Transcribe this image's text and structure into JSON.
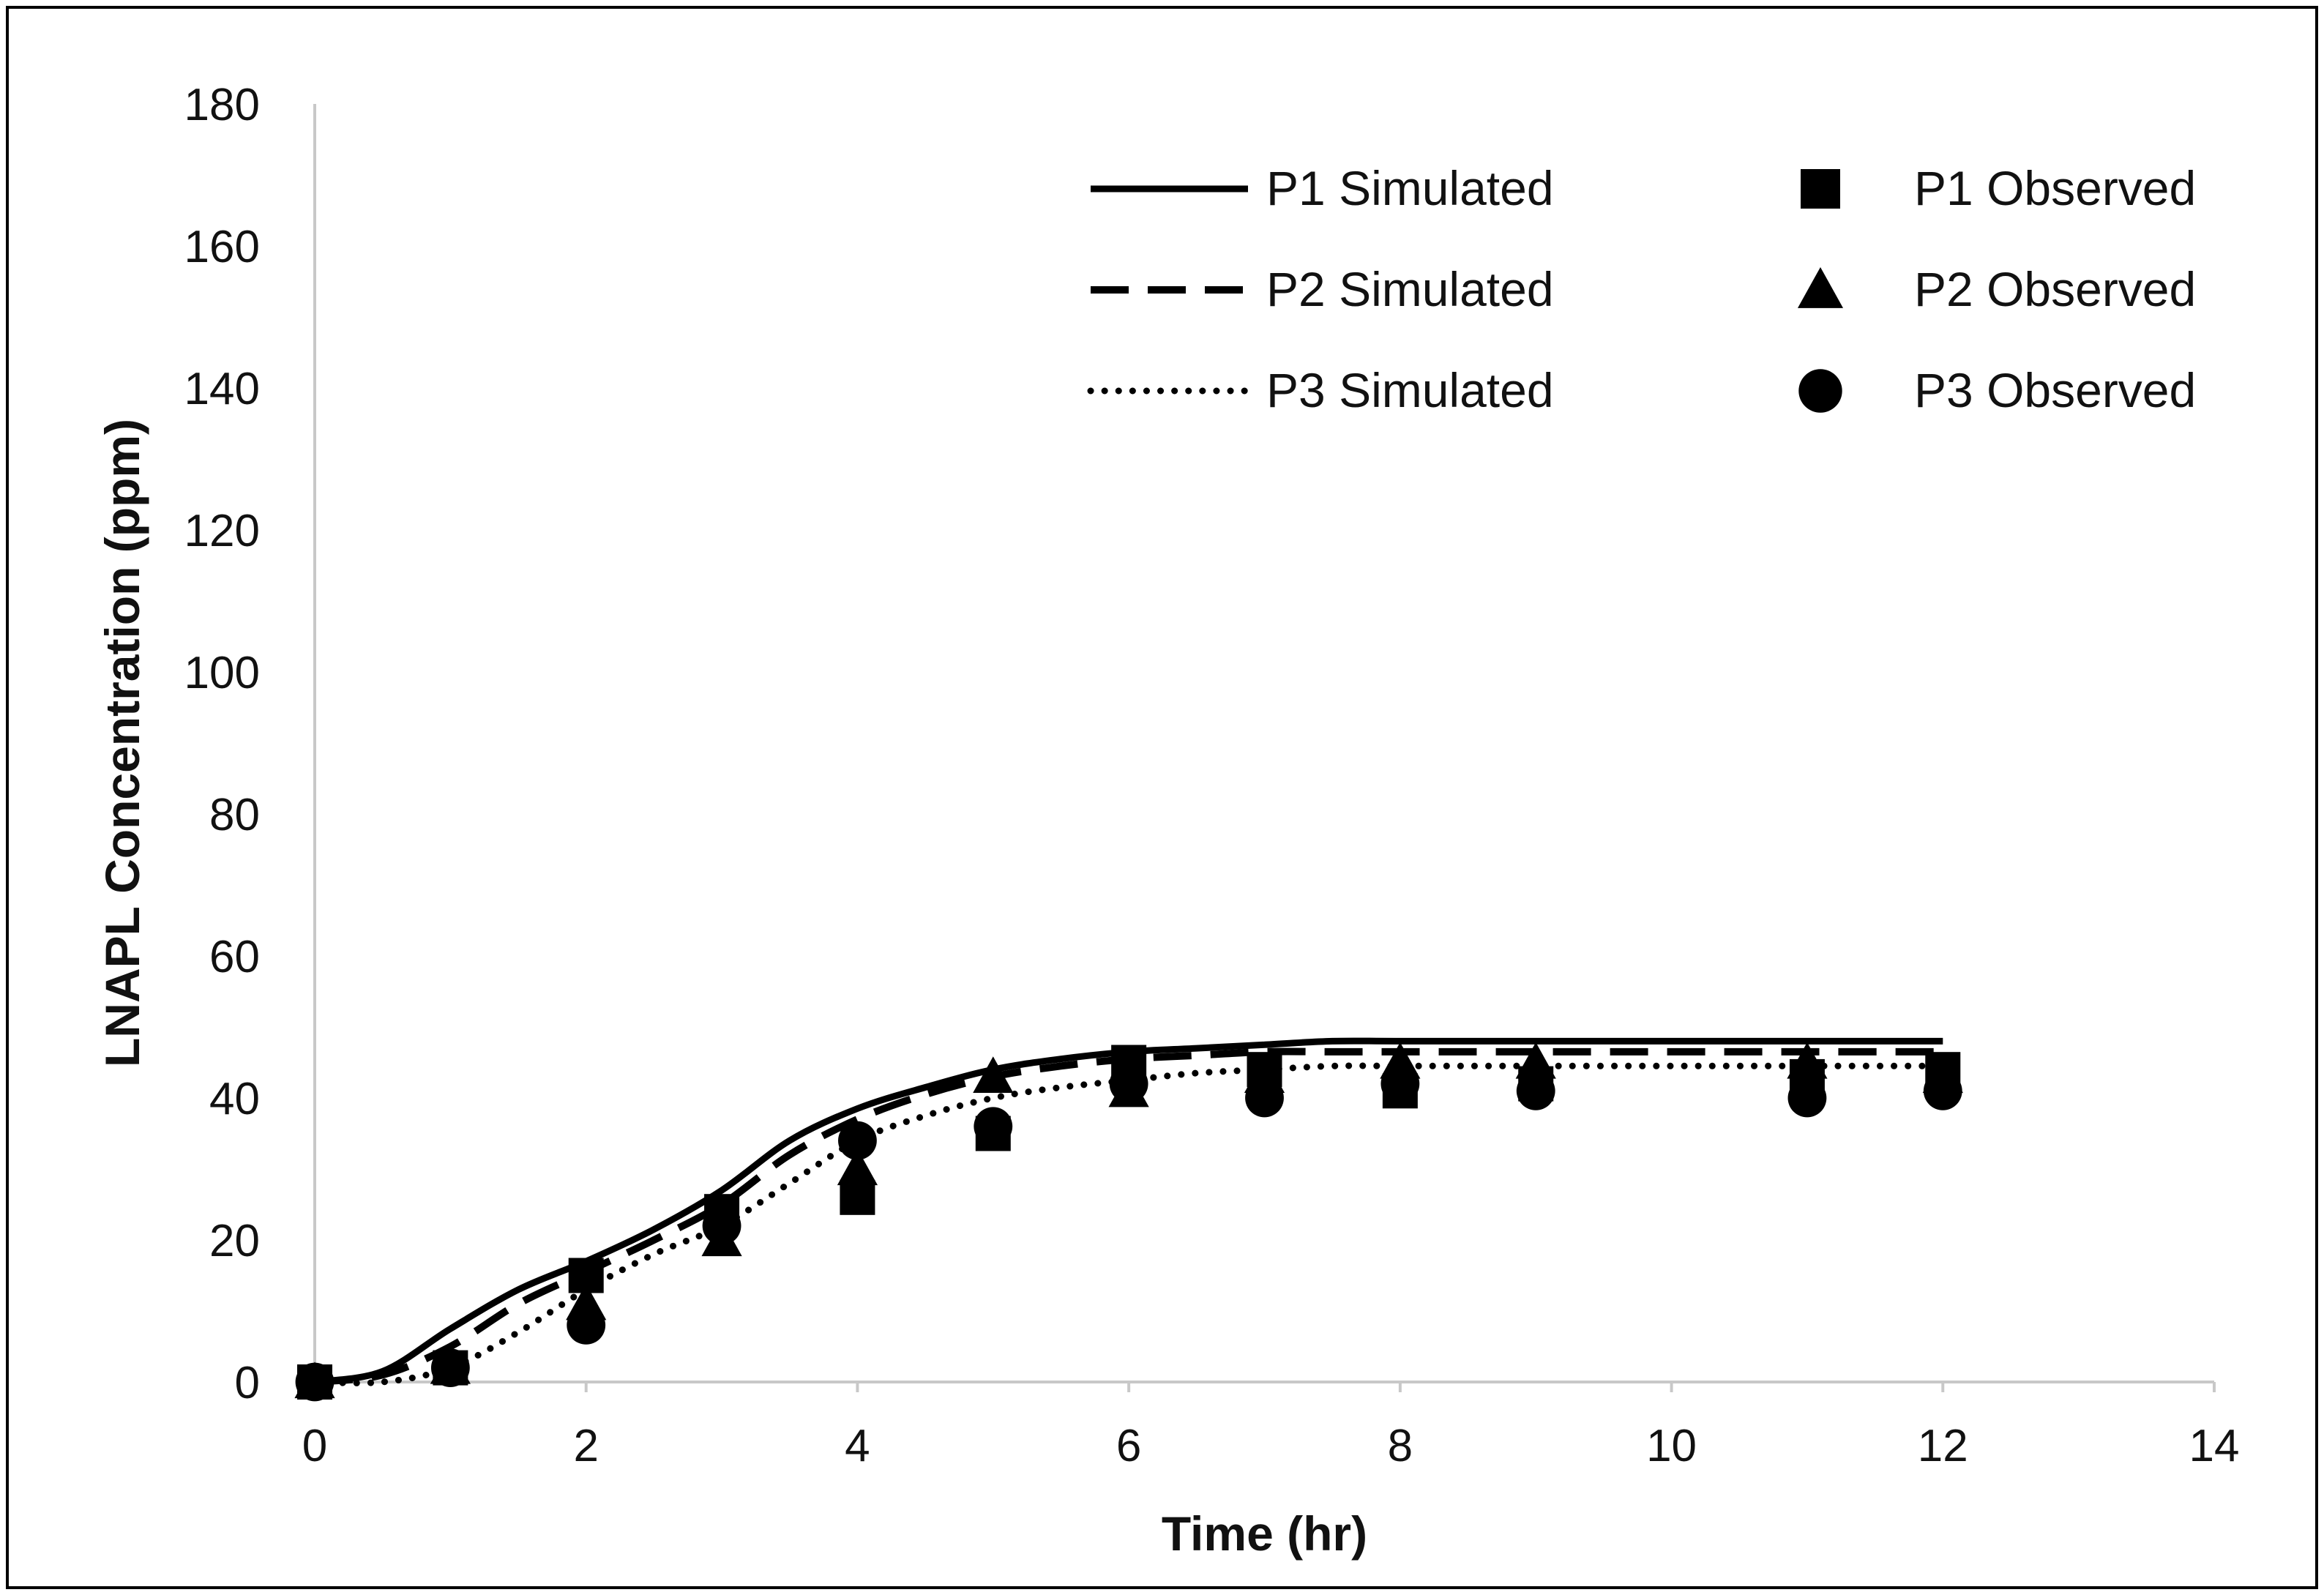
{
  "chart_data": {
    "type": "scatter",
    "title": "",
    "xlabel": "Time (hr)",
    "ylabel": "LNAPL Concentration (ppm)",
    "xlim": [
      0,
      14
    ],
    "ylim": [
      0,
      180
    ],
    "xticks": [
      0,
      2,
      4,
      6,
      8,
      10,
      12,
      14
    ],
    "yticks": [
      0,
      20,
      40,
      60,
      80,
      100,
      120,
      140,
      160,
      180
    ],
    "grid": false,
    "legend_position": "top-right",
    "series": [
      {
        "name": "P1 Simulated",
        "kind": "line",
        "style": "solid",
        "x": [
          0,
          0.5,
          1,
          1.5,
          2,
          2.5,
          3,
          3.5,
          4,
          4.5,
          5,
          5.5,
          6,
          6.5,
          7,
          7.5,
          8,
          9,
          10,
          11,
          12
        ],
        "y": [
          0,
          1.5,
          7.5,
          13,
          17,
          21.5,
          27,
          34,
          38.5,
          41.5,
          44,
          45.5,
          46.5,
          47,
          47.5,
          48,
          48,
          48,
          48,
          48,
          48
        ]
      },
      {
        "name": "P2 Simulated",
        "kind": "line",
        "style": "dashed",
        "x": [
          0,
          0.5,
          1,
          1.5,
          2,
          2.5,
          3,
          3.5,
          4,
          4.5,
          5,
          5.5,
          6,
          6.5,
          7,
          7.5,
          8,
          9,
          10,
          11,
          12
        ],
        "y": [
          0,
          1,
          5,
          11,
          15.5,
          20,
          25,
          32,
          37,
          40.5,
          43,
          44.5,
          45.5,
          46,
          46.5,
          46.5,
          46.5,
          46.5,
          46.5,
          46.5,
          46.5
        ]
      },
      {
        "name": "P3 Simulated",
        "kind": "line",
        "style": "dotted",
        "x": [
          0,
          0.5,
          1,
          1.5,
          2,
          2.5,
          3,
          3.5,
          4,
          4.5,
          5,
          5.5,
          6,
          6.5,
          7,
          7.5,
          8,
          9,
          10,
          11,
          12
        ],
        "y": [
          0,
          0,
          2,
          7,
          13,
          18,
          22,
          28,
          34,
          37.5,
          40,
          41.5,
          42.5,
          43.5,
          44,
          44.5,
          44.5,
          44.5,
          44.5,
          44.5,
          44.5
        ]
      },
      {
        "name": "P1 Observed",
        "kind": "marker",
        "marker": "square",
        "x": [
          0,
          1,
          2,
          3,
          4,
          5,
          6,
          7,
          8,
          9,
          11,
          12
        ],
        "y": [
          0,
          2,
          15,
          24,
          26,
          35,
          45,
          44,
          41,
          42,
          43,
          44
        ]
      },
      {
        "name": "P2 Observed",
        "kind": "marker",
        "marker": "triangle",
        "x": [
          0,
          1,
          2,
          3,
          4,
          5,
          6,
          7,
          8,
          9,
          11,
          12
        ],
        "y": [
          0,
          2,
          11,
          20,
          30,
          43,
          41,
          43,
          45,
          45,
          45,
          43
        ]
      },
      {
        "name": "P3 Observed",
        "kind": "marker",
        "marker": "circle",
        "x": [
          0,
          1,
          2,
          3,
          4,
          5,
          6,
          7,
          8,
          9,
          11,
          12
        ],
        "y": [
          0,
          2,
          8,
          22,
          34,
          36,
          42,
          40,
          42,
          41,
          40,
          41
        ]
      }
    ]
  }
}
